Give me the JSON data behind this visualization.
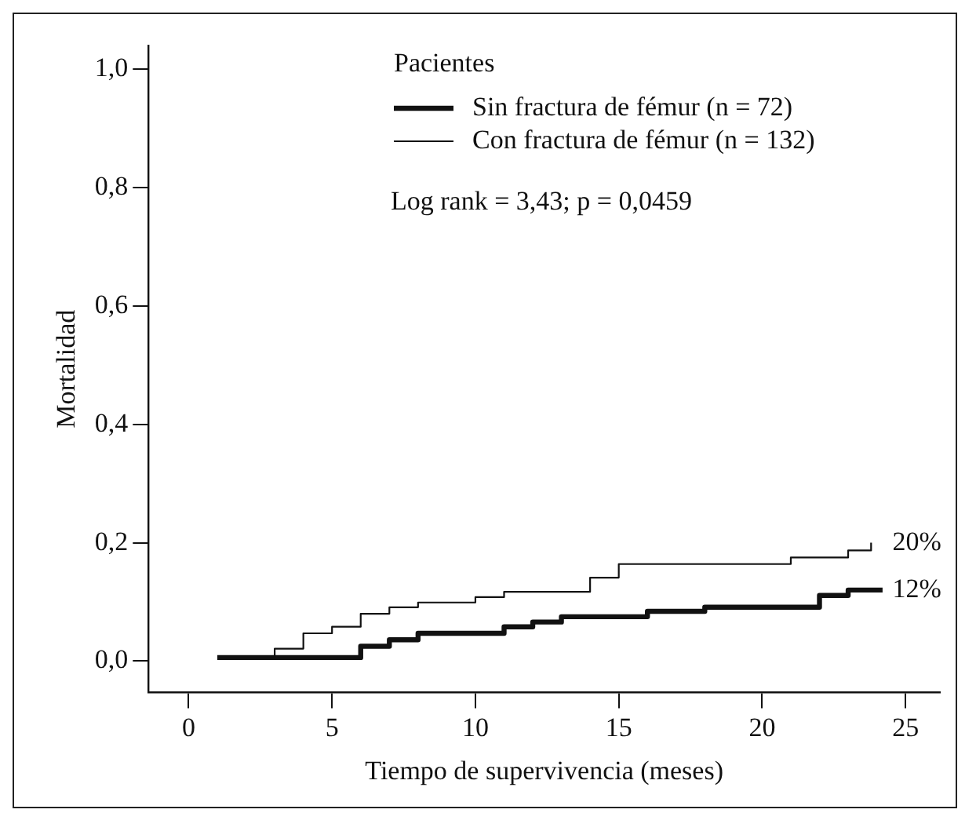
{
  "chart_data": {
    "type": "step",
    "xlabel": "Tiempo de supervivencia (meses)",
    "ylabel": "Mortalidad",
    "legend_title": "Pacientes",
    "legend": "top right",
    "grid": false,
    "marker": "none",
    "line_style": "solid",
    "xlim": [
      -1.4,
      26.2
    ],
    "xticks": [
      0,
      5,
      10,
      15,
      20,
      25
    ],
    "ylim": [
      -0.053,
      1.04
    ],
    "yticks": [
      {
        "value": 0,
        "label": "0,0"
      },
      {
        "value": 0.2,
        "label": "0,2"
      },
      {
        "value": 0.4,
        "label": "0,4"
      },
      {
        "value": 0.6,
        "label": "0,6"
      },
      {
        "value": 0.8,
        "label": "0,8"
      },
      {
        "value": 1,
        "label": "1,0"
      }
    ],
    "series": [
      {
        "name": "Sin fractura de fémur (n = 72)",
        "color": "#111111",
        "x": [
          1,
          6,
          7,
          8,
          11,
          12,
          13,
          16,
          18,
          22,
          23,
          24.2
        ],
        "values": [
          0.006,
          0.025,
          0.036,
          0.047,
          0.058,
          0.066,
          0.075,
          0.084,
          0.091,
          0.111,
          0.12,
          0.12
        ]
      },
      {
        "name": "Con fractura de fémur (n = 132)",
        "color": "#111111",
        "x": [
          1,
          3,
          4,
          5,
          6,
          7,
          8,
          10,
          11,
          14,
          15,
          21,
          23,
          23.8
        ],
        "values": [
          0.007,
          0.021,
          0.047,
          0.058,
          0.08,
          0.091,
          0.099,
          0.108,
          0.117,
          0.141,
          0.164,
          0.175,
          0.187,
          0.2
        ]
      }
    ],
    "annotations": [
      "Log rank = 3,43; p = 0,0459",
      {
        "text": "20%",
        "x": 24,
        "y": 0.2
      },
      {
        "text": "12%",
        "x": 24,
        "y": 0.12
      }
    ]
  }
}
